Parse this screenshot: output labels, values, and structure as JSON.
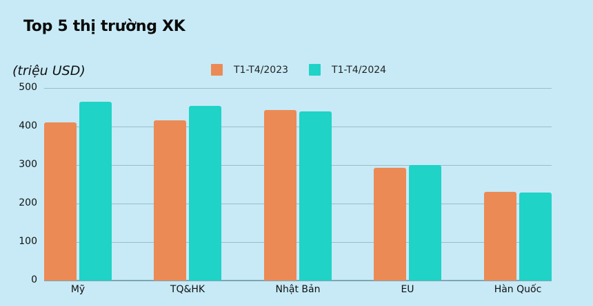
{
  "title": "Top 5 thị trường XK",
  "unit_label": "(triệu USD)",
  "legend": [
    {
      "label": "T1-T4/2023",
      "color": "#ec8a55"
    },
    {
      "label": "T1-T4/2024",
      "color": "#1fd3c6"
    }
  ],
  "y_ticks": [
    "500",
    "400",
    "300",
    "200",
    "100",
    "0"
  ],
  "categories": [
    "Mỹ",
    "TQ&HK",
    "Nhật Bản",
    "EU",
    "Hàn Quốc"
  ],
  "chart_data": {
    "type": "bar",
    "title": "Top 5 thị trường XK",
    "xlabel": "",
    "ylabel": "(triệu USD)",
    "categories": [
      "Mỹ",
      "TQ&HK",
      "Nhật Bản",
      "EU",
      "Hàn Quốc"
    ],
    "series": [
      {
        "name": "T1-T4/2023",
        "color": "#ec8a55",
        "values": [
          411,
          416,
          443,
          293,
          230
        ]
      },
      {
        "name": "T1-T4/2024",
        "color": "#1fd3c6",
        "values": [
          464,
          454,
          439,
          300,
          228
        ]
      }
    ],
    "ylim": [
      0,
      500
    ],
    "yticks": [
      0,
      100,
      200,
      300,
      400,
      500
    ],
    "grid": true,
    "legend_position": "top"
  }
}
